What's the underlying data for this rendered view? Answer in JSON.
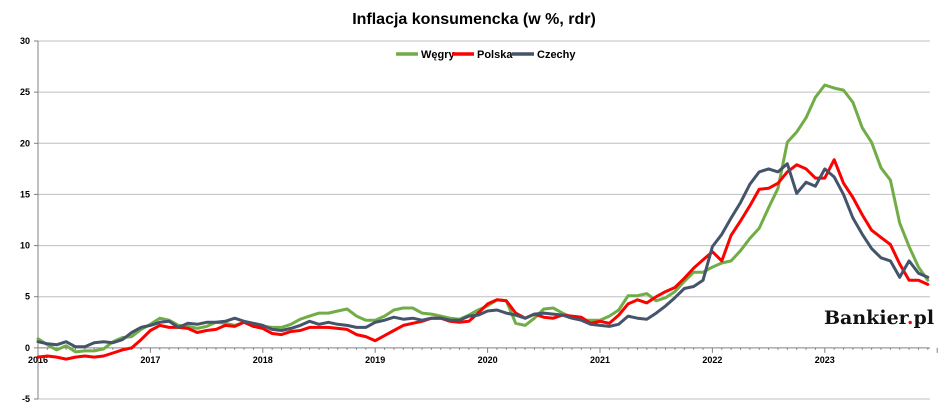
{
  "chart_data": {
    "type": "line",
    "title": "Inflacja konsumencka (w %, rdr)",
    "ylim": [
      -5,
      30
    ],
    "yticks": [
      -5,
      0,
      5,
      10,
      15,
      20,
      25,
      30
    ],
    "xticks": [
      "2016",
      "2017",
      "2018",
      "2019",
      "2020",
      "2021",
      "2022",
      "2023"
    ],
    "x_start": "2016-01",
    "legend_position": "top-center",
    "grid": "horizontal",
    "series": [
      {
        "name": "Węgry",
        "color": "#70ad47",
        "values": [
          0.9,
          0.3,
          -0.2,
          0.2,
          -0.4,
          -0.3,
          -0.3,
          -0.1,
          0.6,
          1.0,
          1.1,
          1.8,
          2.3,
          2.9,
          2.7,
          2.2,
          2.1,
          1.9,
          2.1,
          2.5,
          2.4,
          2.2,
          2.5,
          2.1,
          2.1,
          2.0,
          2.0,
          2.3,
          2.8,
          3.1,
          3.4,
          3.4,
          3.6,
          3.8,
          3.1,
          2.7,
          2.7,
          3.1,
          3.7,
          3.9,
          3.9,
          3.4,
          3.3,
          3.1,
          2.9,
          2.8,
          3.2,
          3.7,
          4.1,
          4.7,
          4.6,
          2.4,
          2.2,
          2.9,
          3.8,
          3.9,
          3.4,
          3.0,
          2.7,
          2.7,
          2.7,
          3.1,
          3.7,
          5.1,
          5.1,
          5.3,
          4.6,
          4.9,
          5.5,
          6.5,
          7.4,
          7.4,
          7.9,
          8.3,
          8.5,
          9.5,
          10.7,
          11.7,
          13.7,
          15.6,
          20.1,
          21.1,
          22.5,
          24.5,
          25.7,
          25.4,
          25.2,
          24.0,
          21.5,
          20.1,
          17.6,
          16.4,
          12.2,
          9.9,
          7.9,
          6.6
        ]
      },
      {
        "name": "Polska",
        "color": "#ff0000",
        "values": [
          -0.9,
          -0.8,
          -0.9,
          -1.1,
          -0.9,
          -0.8,
          -0.9,
          -0.8,
          -0.5,
          -0.2,
          0.0,
          0.8,
          1.7,
          2.2,
          2.0,
          2.0,
          1.9,
          1.5,
          1.7,
          1.8,
          2.2,
          2.1,
          2.5,
          2.1,
          1.9,
          1.4,
          1.3,
          1.6,
          1.7,
          2.0,
          2.0,
          2.0,
          1.9,
          1.8,
          1.3,
          1.1,
          0.7,
          1.2,
          1.7,
          2.2,
          2.4,
          2.6,
          2.9,
          2.9,
          2.6,
          2.5,
          2.6,
          3.4,
          4.3,
          4.7,
          4.6,
          3.4,
          2.9,
          3.3,
          3.0,
          2.9,
          3.2,
          3.1,
          3.0,
          2.4,
          2.6,
          2.4,
          3.2,
          4.3,
          4.7,
          4.4,
          5.0,
          5.5,
          5.9,
          6.8,
          7.8,
          8.6,
          9.4,
          8.5,
          11.0,
          12.4,
          13.9,
          15.5,
          15.6,
          16.1,
          17.2,
          17.9,
          17.5,
          16.6,
          16.6,
          18.4,
          16.1,
          14.7,
          13.0,
          11.5,
          10.8,
          10.1,
          8.2,
          6.6,
          6.6,
          6.2
        ]
      },
      {
        "name": "Czechy",
        "color": "#44546a",
        "values": [
          0.6,
          0.4,
          0.3,
          0.6,
          0.1,
          0.1,
          0.5,
          0.6,
          0.5,
          0.8,
          1.5,
          2.0,
          2.2,
          2.5,
          2.6,
          2.0,
          2.4,
          2.3,
          2.5,
          2.5,
          2.6,
          2.9,
          2.6,
          2.4,
          2.2,
          1.8,
          1.7,
          1.9,
          2.2,
          2.6,
          2.3,
          2.5,
          2.3,
          2.2,
          2.0,
          2.0,
          2.5,
          2.7,
          3.0,
          2.8,
          2.9,
          2.7,
          2.9,
          2.9,
          2.7,
          2.7,
          3.1,
          3.2,
          3.6,
          3.7,
          3.4,
          3.2,
          2.9,
          3.3,
          3.4,
          3.3,
          3.2,
          2.9,
          2.7,
          2.3,
          2.2,
          2.1,
          2.3,
          3.1,
          2.9,
          2.8,
          3.4,
          4.1,
          4.9,
          5.8,
          6.0,
          6.6,
          9.9,
          11.1,
          12.7,
          14.2,
          16.0,
          17.2,
          17.5,
          17.2,
          18.0,
          15.1,
          16.2,
          15.8,
          17.5,
          16.7,
          15.0,
          12.7,
          11.1,
          9.7,
          8.8,
          8.5,
          6.9,
          8.5,
          7.3,
          6.9
        ]
      }
    ]
  },
  "watermark": {
    "text_main": "Bankier",
    "text_dot": ".",
    "text_end": "pl",
    "dot_color": "#d6121f"
  }
}
